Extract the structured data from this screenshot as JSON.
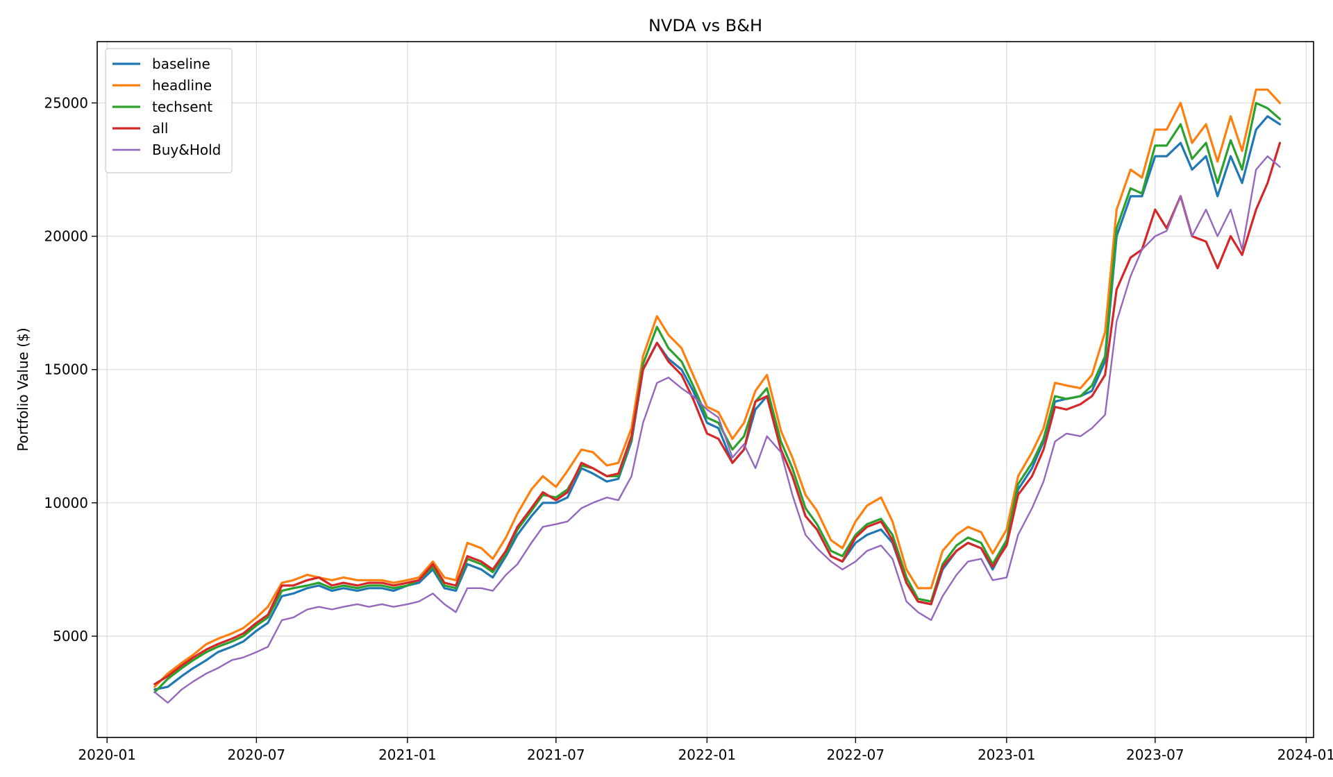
{
  "chart_data": {
    "type": "line",
    "title": "NVDA vs B&H",
    "xlabel": "",
    "ylabel": "Portfolio Value ($)",
    "xlim": [
      "2019-12-20",
      "2024-01-10"
    ],
    "ylim": [
      1200,
      27300
    ],
    "grid": true,
    "legend_position": "top-left",
    "x_ticks": [
      "2020-01",
      "2020-07",
      "2021-01",
      "2021-07",
      "2022-01",
      "2022-07",
      "2023-01",
      "2023-07",
      "2024-01"
    ],
    "y_ticks": [
      5000,
      10000,
      15000,
      20000,
      25000
    ],
    "x": [
      "2020-02-28",
      "2020-03-15",
      "2020-04-01",
      "2020-04-15",
      "2020-05-01",
      "2020-05-15",
      "2020-06-01",
      "2020-06-15",
      "2020-07-01",
      "2020-07-15",
      "2020-08-01",
      "2020-08-15",
      "2020-09-01",
      "2020-09-15",
      "2020-10-01",
      "2020-10-15",
      "2020-11-01",
      "2020-11-15",
      "2020-12-01",
      "2020-12-15",
      "2021-01-01",
      "2021-01-15",
      "2021-02-01",
      "2021-02-15",
      "2021-03-01",
      "2021-03-15",
      "2021-04-01",
      "2021-04-15",
      "2021-05-01",
      "2021-05-15",
      "2021-06-01",
      "2021-06-15",
      "2021-07-01",
      "2021-07-15",
      "2021-08-01",
      "2021-08-15",
      "2021-09-01",
      "2021-09-15",
      "2021-10-01",
      "2021-10-15",
      "2021-11-01",
      "2021-11-15",
      "2021-12-01",
      "2021-12-15",
      "2022-01-01",
      "2022-01-15",
      "2022-02-01",
      "2022-02-15",
      "2022-03-01",
      "2022-03-15",
      "2022-04-01",
      "2022-04-15",
      "2022-05-01",
      "2022-05-15",
      "2022-06-01",
      "2022-06-15",
      "2022-07-01",
      "2022-07-15",
      "2022-08-01",
      "2022-08-15",
      "2022-09-01",
      "2022-09-15",
      "2022-10-01",
      "2022-10-15",
      "2022-11-01",
      "2022-11-15",
      "2022-12-01",
      "2022-12-15",
      "2023-01-01",
      "2023-01-15",
      "2023-02-01",
      "2023-02-15",
      "2023-03-01",
      "2023-03-15",
      "2023-04-01",
      "2023-04-15",
      "2023-05-01",
      "2023-05-15",
      "2023-06-01",
      "2023-06-15",
      "2023-07-01",
      "2023-07-15",
      "2023-08-01",
      "2023-08-15",
      "2023-09-01",
      "2023-09-15",
      "2023-10-01",
      "2023-10-15",
      "2023-11-01",
      "2023-11-15",
      "2023-11-30"
    ],
    "series": [
      {
        "name": "baseline",
        "color": "#1f77b4",
        "width": 3.2,
        "values": [
          3000,
          3100,
          3500,
          3800,
          4100,
          4400,
          4600,
          4800,
          5200,
          5500,
          6500,
          6600,
          6800,
          6900,
          6700,
          6800,
          6700,
          6800,
          6800,
          6700,
          6900,
          7000,
          7500,
          6800,
          6700,
          7700,
          7500,
          7200,
          8000,
          8800,
          9500,
          10000,
          10000,
          10200,
          11300,
          11100,
          10800,
          10900,
          12300,
          15000,
          16000,
          15400,
          15000,
          14200,
          13000,
          12800,
          11500,
          12000,
          13500,
          14000,
          12000,
          11000,
          9500,
          9000,
          8000,
          7800,
          8500,
          8800,
          9000,
          8500,
          7000,
          6300,
          6200,
          7500,
          8200,
          8500,
          8300,
          7500,
          8500,
          10500,
          11300,
          12300,
          13800,
          13900,
          14000,
          14200,
          15300,
          20000,
          21500,
          21500,
          23000,
          23000,
          23500,
          22500,
          23000,
          21500,
          23000,
          22000,
          24000,
          24500,
          24200
        ]
      },
      {
        "name": "headline",
        "color": "#ff7f0e",
        "width": 3.2,
        "values": [
          3100,
          3600,
          4000,
          4300,
          4700,
          4900,
          5100,
          5300,
          5700,
          6100,
          7000,
          7100,
          7300,
          7200,
          7100,
          7200,
          7100,
          7100,
          7100,
          7000,
          7100,
          7200,
          7800,
          7200,
          7100,
          8500,
          8300,
          7900,
          8700,
          9600,
          10500,
          11000,
          10600,
          11200,
          12000,
          11900,
          11400,
          11500,
          12800,
          15500,
          17000,
          16300,
          15800,
          14800,
          13600,
          13400,
          12400,
          13000,
          14200,
          14800,
          12700,
          11700,
          10300,
          9700,
          8600,
          8300,
          9300,
          9900,
          10200,
          9300,
          7500,
          6800,
          6800,
          8200,
          8800,
          9100,
          8900,
          8100,
          9000,
          11000,
          11900,
          12800,
          14500,
          14400,
          14300,
          14800,
          16400,
          21000,
          22500,
          22200,
          24000,
          24000,
          25000,
          23500,
          24200,
          22800,
          24500,
          23200,
          25500,
          25500,
          25000
        ]
      },
      {
        "name": "techsent",
        "color": "#2ca02c",
        "width": 3.2,
        "values": [
          2900,
          3400,
          3800,
          4100,
          4400,
          4600,
          4800,
          5000,
          5400,
          5700,
          6700,
          6800,
          6900,
          7000,
          6800,
          6900,
          6800,
          6900,
          6900,
          6800,
          6900,
          7100,
          7600,
          6900,
          6800,
          7900,
          7700,
          7400,
          8100,
          9000,
          9700,
          10300,
          10200,
          10500,
          11400,
          11300,
          11000,
          11000,
          12400,
          15200,
          16600,
          15800,
          15300,
          14400,
          13200,
          13000,
          12000,
          12500,
          13800,
          14300,
          12300,
          11300,
          9800,
          9200,
          8200,
          8000,
          8800,
          9200,
          9400,
          8800,
          7200,
          6400,
          6300,
          7700,
          8400,
          8700,
          8500,
          7700,
          8600,
          10700,
          11500,
          12400,
          14000,
          13900,
          14000,
          14400,
          15500,
          20300,
          21800,
          21600,
          23400,
          23400,
          24200,
          22900,
          23500,
          22000,
          23600,
          22500,
          25000,
          24800,
          24400
        ]
      },
      {
        "name": "all",
        "color": "#d62728",
        "width": 3.2,
        "values": [
          3200,
          3500,
          3900,
          4200,
          4500,
          4700,
          4900,
          5100,
          5500,
          5800,
          6900,
          6900,
          7100,
          7200,
          6900,
          7000,
          6900,
          7000,
          7000,
          6900,
          7000,
          7100,
          7700,
          7000,
          6900,
          8000,
          7800,
          7500,
          8200,
          9100,
          9800,
          10400,
          10100,
          10400,
          11500,
          11300,
          11000,
          11100,
          12500,
          15000,
          16000,
          15300,
          14800,
          13900,
          12600,
          12400,
          11500,
          12000,
          13800,
          14000,
          12000,
          11000,
          9500,
          9000,
          8000,
          7800,
          8700,
          9100,
          9300,
          8600,
          7000,
          6300,
          6200,
          7600,
          8200,
          8500,
          8300,
          7600,
          8400,
          10300,
          11000,
          12000,
          13600,
          13500,
          13700,
          14000,
          14800,
          18000,
          19200,
          19500,
          21000,
          20300,
          21500,
          20000,
          19800,
          18800,
          20000,
          19300,
          21000,
          22000,
          23500
        ]
      },
      {
        "name": "Buy&Hold",
        "color": "#9467bd",
        "width": 2.4,
        "values": [
          2900,
          2500,
          3000,
          3300,
          3600,
          3800,
          4100,
          4200,
          4400,
          4600,
          5600,
          5700,
          6000,
          6100,
          6000,
          6100,
          6200,
          6100,
          6200,
          6100,
          6200,
          6300,
          6600,
          6200,
          5900,
          6800,
          6800,
          6700,
          7300,
          7700,
          8500,
          9100,
          9200,
          9300,
          9800,
          10000,
          10200,
          10100,
          11000,
          13000,
          14500,
          14700,
          14300,
          14000,
          13500,
          13200,
          11700,
          12200,
          11300,
          12500,
          11900,
          10300,
          8800,
          8300,
          7800,
          7500,
          7800,
          8200,
          8400,
          7900,
          6300,
          5900,
          5600,
          6500,
          7300,
          7800,
          7900,
          7100,
          7200,
          8800,
          9800,
          10800,
          12300,
          12600,
          12500,
          12800,
          13300,
          16800,
          18500,
          19500,
          20000,
          20200,
          21500,
          20000,
          21000,
          20000,
          21000,
          19500,
          22500,
          23000,
          22600
        ]
      }
    ]
  }
}
